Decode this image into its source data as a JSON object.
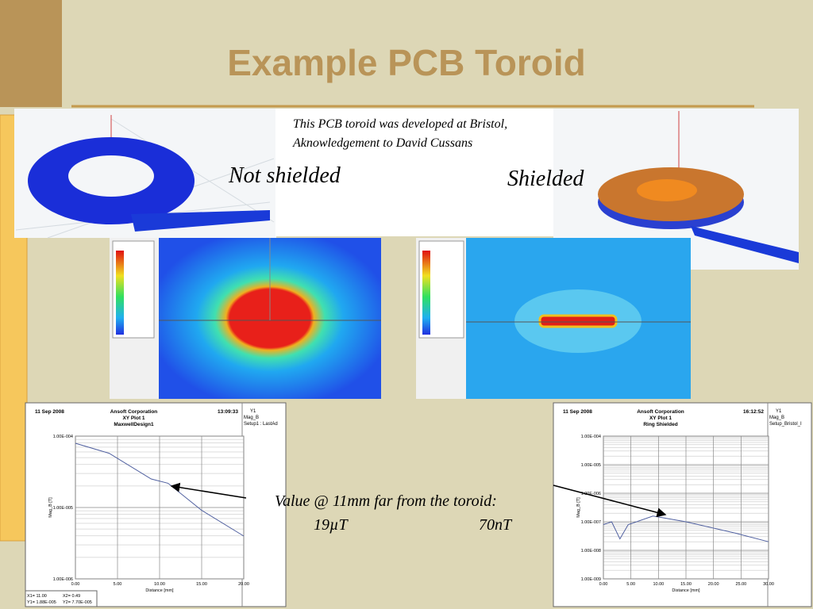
{
  "title": "Example PCB Toroid",
  "credit": [
    "This PCB toroid was developed at Bristol,",
    "Aknowledgement to David Cussans"
  ],
  "labels": {
    "left": "Not shielded",
    "right": "Shielded"
  },
  "annotation": {
    "text": "Value @ 11mm far from the toroid:",
    "left_value": "19µT",
    "right_value": "70nT"
  },
  "plots": [
    {
      "date": "11 Sep 2008",
      "company": "Ansoft Corporation",
      "subtitle": "XY Plot 1",
      "name": "MaxwellDesign1",
      "time": "13:09:33",
      "legend": [
        "Y1",
        "Mag_B",
        "Setup1 : LastAd"
      ],
      "y_label": "Mag_B [T]",
      "x_label": "Distance [mm]",
      "xticks": [
        "0.00",
        "5.00",
        "10.00",
        "15.00",
        "20.00"
      ],
      "yticks": [
        "1.00E-004",
        "1.00E-005",
        "1.00E-006"
      ],
      "readout": [
        "X1= 11.00",
        "X2= 0.49",
        "Y1= 1.88E-005",
        "Y2= 7.70E-005"
      ]
    },
    {
      "date": "11 Sep 2008",
      "company": "Ansoft Corporation",
      "subtitle": "XY Plot 1",
      "name": "Ring Shielded",
      "time": "16:12:52",
      "legend": [
        "Y1",
        "Mag_B",
        "Setup_Bristol_I"
      ],
      "y_label": "Mag_B [T]",
      "x_label": "Distance [mm]",
      "xticks": [
        "0.00",
        "5.00",
        "10.00",
        "15.00",
        "20.00",
        "25.00",
        "30.00"
      ],
      "yticks": [
        "1.00E-004",
        "1.00E-005",
        "1.00E-006",
        "1.00E-007",
        "1.00E-008",
        "1.00E-009"
      ]
    }
  ]
}
